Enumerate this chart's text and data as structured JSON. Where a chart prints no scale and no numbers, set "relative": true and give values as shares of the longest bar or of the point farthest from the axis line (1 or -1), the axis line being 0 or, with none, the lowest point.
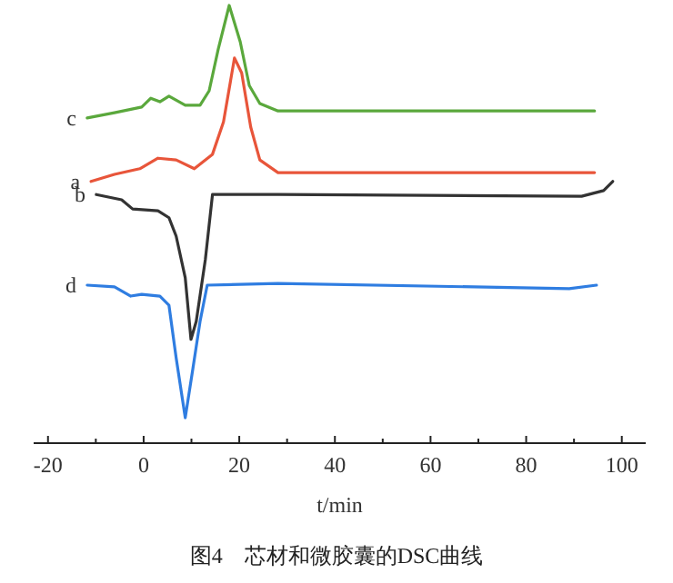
{
  "chart_data": {
    "type": "line",
    "relative": true,
    "xlabel": "t/min",
    "annotations": [
      "图4　芯材和微胶囊的DSC曲线"
    ],
    "xlim": [
      -23,
      105
    ],
    "xticks": [
      -20,
      {
        "value": -10,
        "label": null
      },
      0,
      {
        "value": 10,
        "label": null
      },
      20,
      {
        "value": 30,
        "label": null
      },
      40,
      {
        "value": 50,
        "label": null
      },
      60,
      {
        "value": 70,
        "label": null
      },
      80,
      {
        "value": 90,
        "label": null
      },
      100
    ],
    "series": [
      {
        "name": "c",
        "color": "#5aa83c",
        "x": [
          -11.8,
          -6.1,
          -0.4,
          1.5,
          3.4,
          5.3,
          8.7,
          11.8,
          13.7,
          15.6,
          17.9,
          20.2,
          22.1,
          24.3,
          28.1,
          53.6,
          94.3
        ],
        "values": [
          0.743,
          0.755,
          0.768,
          0.788,
          0.78,
          0.793,
          0.772,
          0.772,
          0.805,
          0.9,
          1.0,
          0.917,
          0.817,
          0.776,
          0.759,
          0.759,
          0.759
        ]
      },
      {
        "name": "a",
        "color": "#e8553a",
        "x": [
          -11,
          -6.1,
          -0.8,
          3.0,
          6.8,
          10.6,
          14.4,
          16.7,
          19.0,
          20.5,
          22.4,
          24.3,
          28.1,
          94.3
        ],
        "values": [
          0.598,
          0.614,
          0.627,
          0.651,
          0.647,
          0.627,
          0.66,
          0.734,
          0.88,
          0.846,
          0.722,
          0.647,
          0.618,
          0.618
        ]
      },
      {
        "name": "b",
        "color": "#333333",
        "x": [
          -9.9,
          -4.6,
          -2.3,
          3.0,
          5.3,
          6.8,
          8.7,
          9.9,
          11.0,
          12.9,
          14.4,
          28.1,
          91.6,
          96.2,
          98.1
        ],
        "values": [
          0.568,
          0.556,
          0.535,
          0.531,
          0.515,
          0.473,
          0.378,
          0.237,
          0.278,
          0.419,
          0.568,
          0.568,
          0.564,
          0.577,
          0.598
        ]
      },
      {
        "name": "d",
        "color": "#2f7de1",
        "x": [
          -11.8,
          -6.1,
          -2.7,
          -0.4,
          3.4,
          5.3,
          6.8,
          8.7,
          10.3,
          11.8,
          13.3,
          28.1,
          89.0,
          94.7
        ],
        "values": [
          0.361,
          0.357,
          0.336,
          0.34,
          0.336,
          0.315,
          0.195,
          0.058,
          0.17,
          0.278,
          0.361,
          0.365,
          0.353,
          0.361
        ]
      }
    ]
  }
}
